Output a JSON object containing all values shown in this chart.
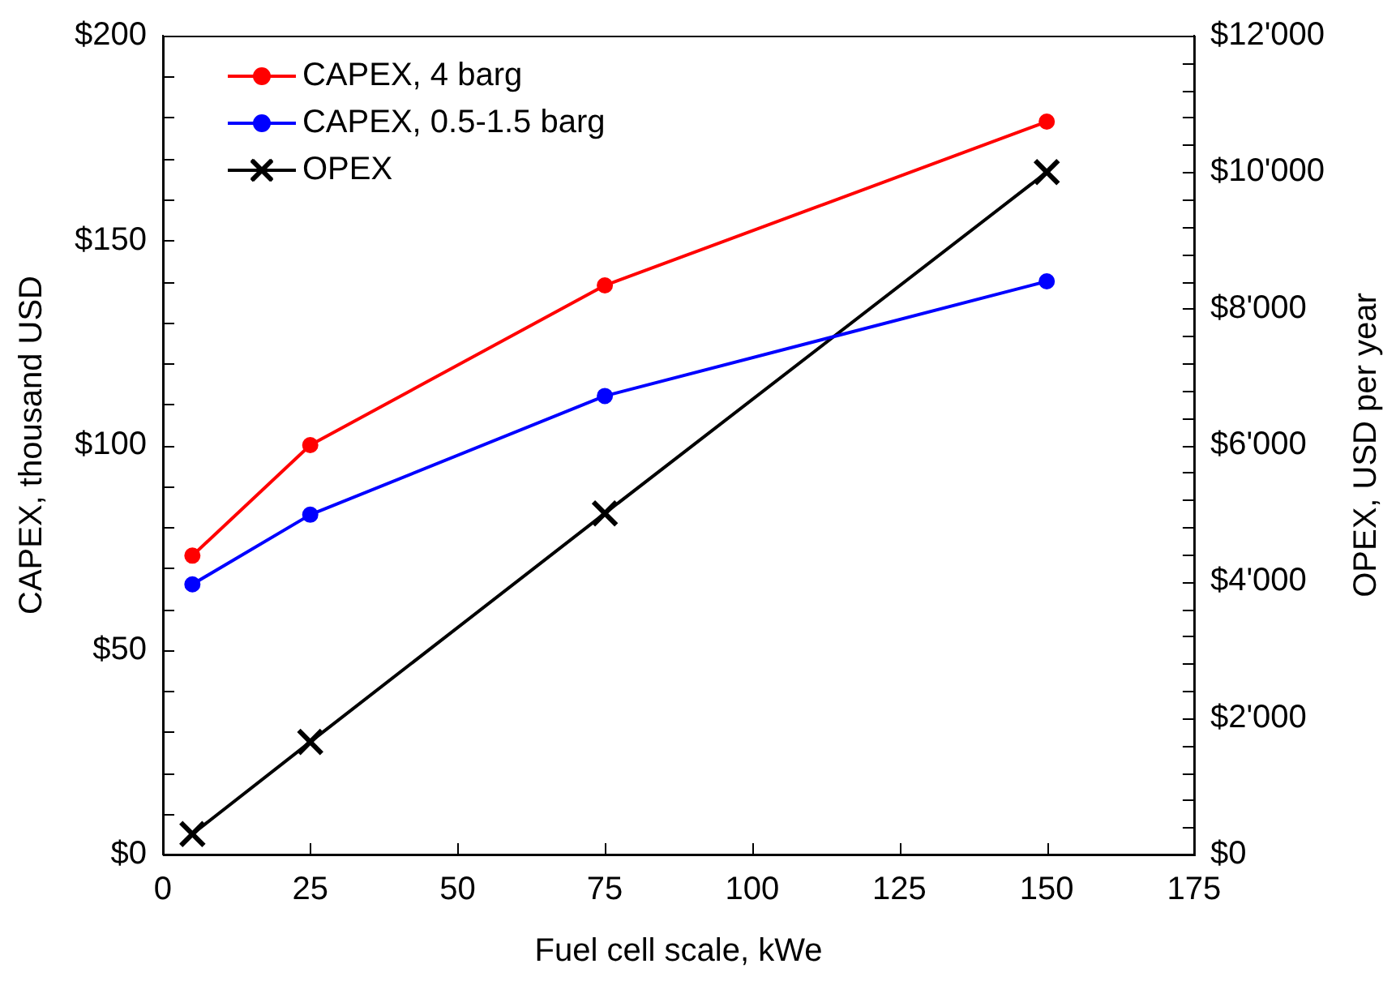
{
  "chart_data": {
    "type": "line",
    "xlabel": "Fuel cell scale, kWe",
    "ylabel": "CAPEX, thousand USD",
    "y2label": "OPEX, USD per year",
    "x": [
      5,
      25,
      75,
      150
    ],
    "series": [
      {
        "name": "CAPEX, 4 barg",
        "color": "#ff0000",
        "values": [
          73,
          100,
          139,
          179
        ],
        "marker": "circle"
      },
      {
        "name": "CAPEX, 0.5-1.5 barg",
        "color": "#0000ff",
        "values": [
          66,
          83,
          112,
          140
        ],
        "marker": "circle"
      },
      {
        "name": "OPEX",
        "color": "#000000",
        "values": [
          300,
          1650,
          5000,
          10000
        ],
        "marker": "cross",
        "axis": "y2"
      }
    ],
    "xlim": [
      0,
      175
    ],
    "xticks": [
      0,
      25,
      50,
      75,
      100,
      125,
      150,
      175
    ],
    "ylim": [
      0,
      200
    ],
    "yticks": [
      {
        "value": 0,
        "label": "$0"
      },
      {
        "value": 10,
        "label": null
      },
      {
        "value": 20,
        "label": null
      },
      {
        "value": 30,
        "label": null
      },
      {
        "value": 40,
        "label": null
      },
      {
        "value": 50,
        "label": "$50"
      },
      {
        "value": 60,
        "label": null
      },
      {
        "value": 70,
        "label": null
      },
      {
        "value": 80,
        "label": null
      },
      {
        "value": 90,
        "label": null
      },
      {
        "value": 100,
        "label": "$100"
      },
      {
        "value": 110,
        "label": null
      },
      {
        "value": 120,
        "label": null
      },
      {
        "value": 130,
        "label": null
      },
      {
        "value": 140,
        "label": null
      },
      {
        "value": 150,
        "label": "$150"
      },
      {
        "value": 160,
        "label": null
      },
      {
        "value": 170,
        "label": null
      },
      {
        "value": 180,
        "label": null
      },
      {
        "value": 190,
        "label": null
      },
      {
        "value": 200,
        "label": "$200"
      }
    ],
    "y2lim": [
      0,
      12000
    ],
    "y2ticks": [
      {
        "value": 0,
        "label": "$0"
      },
      {
        "value": 400,
        "label": null
      },
      {
        "value": 800,
        "label": null
      },
      {
        "value": 1200,
        "label": null
      },
      {
        "value": 1600,
        "label": null
      },
      {
        "value": 2000,
        "label": "$2'000"
      },
      {
        "value": 2400,
        "label": null
      },
      {
        "value": 2800,
        "label": null
      },
      {
        "value": 3200,
        "label": null
      },
      {
        "value": 3600,
        "label": null
      },
      {
        "value": 4000,
        "label": "$4'000"
      },
      {
        "value": 4400,
        "label": null
      },
      {
        "value": 4800,
        "label": null
      },
      {
        "value": 5200,
        "label": null
      },
      {
        "value": 5600,
        "label": null
      },
      {
        "value": 6000,
        "label": "$6'000"
      },
      {
        "value": 6400,
        "label": null
      },
      {
        "value": 6800,
        "label": null
      },
      {
        "value": 7200,
        "label": null
      },
      {
        "value": 7600,
        "label": null
      },
      {
        "value": 8000,
        "label": "$8'000"
      },
      {
        "value": 8400,
        "label": null
      },
      {
        "value": 8800,
        "label": null
      },
      {
        "value": 9200,
        "label": null
      },
      {
        "value": 9600,
        "label": null
      },
      {
        "value": 10000,
        "label": "$10'000"
      },
      {
        "value": 10400,
        "label": null
      },
      {
        "value": 10800,
        "label": null
      },
      {
        "value": 11200,
        "label": null
      },
      {
        "value": 11600,
        "label": null
      },
      {
        "value": 12000,
        "label": "$12'000"
      }
    ],
    "grid": false,
    "legend": "top left",
    "line_style": "solid"
  }
}
